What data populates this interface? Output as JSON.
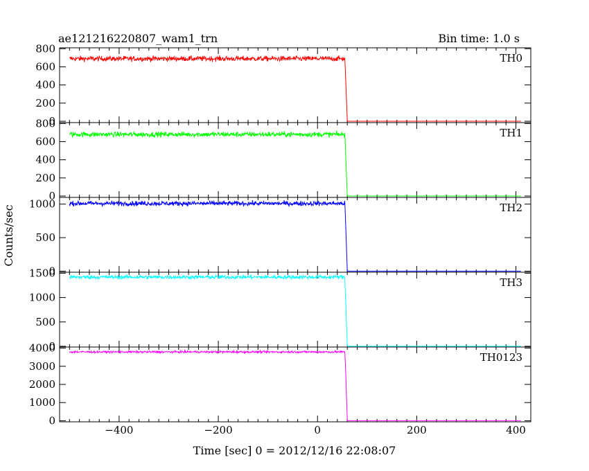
{
  "header": {
    "title": "ae121216220807_wam1_trn",
    "bin_time": "Bin time: 1.0 s"
  },
  "chart_data": {
    "type": "line",
    "title": "ae121216220807_wam1_trn",
    "xlabel": "Time [sec] 0 = 2012/12/16 22:08:07",
    "ylabel": "Counts/sec",
    "xlim": [
      -520,
      430
    ],
    "x_ticks": [
      -400,
      -200,
      0,
      200,
      400
    ],
    "x_tick_labels": [
      "−400",
      "−200",
      "0",
      "200",
      "400"
    ],
    "grid": false,
    "panels": [
      {
        "name": "TH0",
        "color": "#ff0000",
        "ylim": [
          -15,
          810
        ],
        "yticks": [
          0,
          200,
          400,
          600,
          800
        ],
        "level": 690,
        "noise": 28,
        "series": [
          {
            "name": "TH0",
            "x": [
              -500,
              55,
              57,
              60,
              410
            ],
            "y": [
              690,
              680,
              440,
              0,
              0
            ]
          }
        ]
      },
      {
        "name": "TH1",
        "color": "#00ff00",
        "ylim": [
          -15,
          810
        ],
        "yticks": [
          0,
          200,
          400,
          600,
          800
        ],
        "level": 680,
        "noise": 28,
        "series": [
          {
            "name": "TH1",
            "x": [
              -500,
              55,
              57,
              60,
              410
            ],
            "y": [
              680,
              660,
              430,
              0,
              0
            ]
          }
        ]
      },
      {
        "name": "TH2",
        "color": "#0000ff",
        "ylim": [
          -15,
          1100
        ],
        "yticks": [
          0,
          500,
          1000
        ],
        "level": 1010,
        "noise": 35,
        "series": [
          {
            "name": "TH2",
            "x": [
              -500,
              55,
              57,
              60,
              410
            ],
            "y": [
              1010,
              990,
              650,
              0,
              0
            ]
          }
        ]
      },
      {
        "name": "TH3",
        "color": "#00ffff",
        "ylim": [
          -15,
          1520
        ],
        "yticks": [
          0,
          500,
          1000,
          1500
        ],
        "level": 1420,
        "noise": 40,
        "series": [
          {
            "name": "TH3",
            "x": [
              -500,
              55,
              57,
              60,
              410
            ],
            "y": [
              1420,
              1400,
              900,
              0,
              0
            ]
          }
        ]
      },
      {
        "name": "TH0123",
        "color": "#ff00ff",
        "ylim": [
          -60,
          4060
        ],
        "yticks": [
          0,
          1000,
          2000,
          3000,
          4000
        ],
        "level": 3790,
        "noise": 55,
        "series": [
          {
            "name": "TH0123",
            "x": [
              -500,
              55,
              57,
              60,
              410
            ],
            "y": [
              3790,
              3750,
              2600,
              0,
              0
            ]
          }
        ]
      }
    ]
  }
}
